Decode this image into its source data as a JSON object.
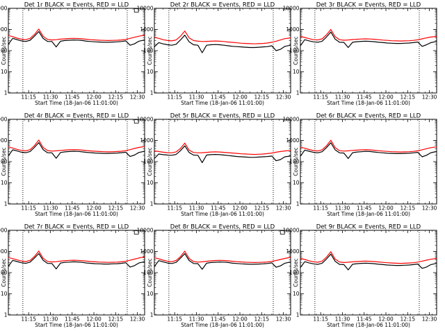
{
  "figure": {
    "xlabel": "Start Time (18-Jan-06 11:01:00)",
    "ylabel": "Counts/sec",
    "x_tick_labels": [
      "11:15",
      "11:30",
      "11:45",
      "12:00",
      "12:15",
      "12:30"
    ],
    "y_tick_labels": [
      "1",
      "10",
      "100",
      "1000",
      "10000"
    ]
  },
  "colors": {
    "events": "#000000",
    "lld": "#ff0000",
    "marker": "#000000"
  },
  "chart_data": [
    {
      "type": "line",
      "title": "Det 1r BLACK = Events, RED = LLD",
      "x_units": "minutes since 11:01:00",
      "xlim": [
        0,
        94
      ],
      "ylim": [
        1,
        10000
      ],
      "y_scale": "log",
      "x": [
        0,
        3,
        6,
        9,
        12,
        15,
        18,
        21,
        24,
        27,
        30,
        33,
        36,
        39,
        42,
        45,
        48,
        51,
        54,
        57,
        60,
        63,
        66,
        69,
        72,
        75,
        78,
        81,
        84,
        87,
        90,
        94
      ],
      "series": [
        {
          "color": "red",
          "values": [
            520,
            460,
            390,
            350,
            330,
            380,
            580,
            1050,
            480,
            340,
            320,
            330,
            350,
            360,
            375,
            380,
            375,
            360,
            345,
            330,
            320,
            310,
            305,
            300,
            305,
            310,
            320,
            340,
            380,
            430,
            480,
            540
          ]
        },
        {
          "color": "black",
          "values": [
            200,
            380,
            330,
            290,
            270,
            310,
            480,
            800,
            380,
            270,
            270,
            150,
            280,
            300,
            310,
            320,
            315,
            300,
            280,
            270,
            260,
            255,
            250,
            250,
            255,
            260,
            270,
            290,
            180,
            210,
            280,
            320
          ]
        }
      ],
      "markers": [
        10,
        82
      ],
      "annotations": [
        {
          "x_fraction": 0.94,
          "shape": "square"
        }
      ]
    },
    {
      "type": "line",
      "title": "Det 2r BLACK = Events, RED = LLD",
      "x_units": "minutes since 11:01:00",
      "xlim": [
        0,
        94
      ],
      "ylim": [
        1,
        10000
      ],
      "y_scale": "log",
      "x": [
        0,
        3,
        6,
        9,
        12,
        15,
        18,
        21,
        24,
        27,
        30,
        33,
        36,
        39,
        42,
        45,
        48,
        51,
        54,
        57,
        60,
        63,
        66,
        69,
        72,
        75,
        78,
        81,
        84,
        87,
        90,
        94
      ],
      "series": [
        {
          "color": "red",
          "values": [
            430,
            380,
            330,
            300,
            290,
            320,
            480,
            850,
            400,
            300,
            280,
            270,
            275,
            280,
            285,
            280,
            270,
            255,
            245,
            235,
            225,
            220,
            215,
            210,
            215,
            220,
            230,
            250,
            280,
            320,
            370,
            400
          ]
        },
        {
          "color": "black",
          "values": [
            150,
            240,
            210,
            190,
            180,
            200,
            320,
            540,
            260,
            190,
            180,
            80,
            180,
            190,
            195,
            190,
            180,
            170,
            160,
            155,
            150,
            145,
            140,
            140,
            145,
            150,
            155,
            170,
            100,
            115,
            160,
            180
          ]
        }
      ],
      "markers": [
        10,
        82
      ],
      "annotations": []
    },
    {
      "type": "line",
      "title": "Det 3r BLACK = Events, RED = LLD",
      "x_units": "minutes since 11:01:00",
      "xlim": [
        0,
        94
      ],
      "ylim": [
        1,
        10000
      ],
      "y_scale": "log",
      "x": [
        0,
        3,
        6,
        9,
        12,
        15,
        18,
        21,
        24,
        27,
        30,
        33,
        36,
        39,
        42,
        45,
        48,
        51,
        54,
        57,
        60,
        63,
        66,
        69,
        72,
        75,
        78,
        81,
        84,
        87,
        90,
        94
      ],
      "series": [
        {
          "color": "red",
          "values": [
            470,
            420,
            370,
            330,
            320,
            360,
            560,
            1000,
            460,
            330,
            310,
            320,
            335,
            345,
            355,
            360,
            355,
            345,
            330,
            315,
            305,
            295,
            290,
            285,
            290,
            295,
            305,
            325,
            360,
            400,
            440,
            470
          ]
        },
        {
          "color": "black",
          "values": [
            170,
            330,
            290,
            260,
            250,
            280,
            440,
            760,
            350,
            250,
            245,
            140,
            250,
            265,
            275,
            280,
            275,
            265,
            250,
            240,
            230,
            225,
            220,
            220,
            225,
            230,
            240,
            255,
            160,
            190,
            240,
            270
          ]
        }
      ],
      "markers": [
        10,
        82
      ],
      "annotations": []
    },
    {
      "type": "line",
      "title": "Det 4r BLACK = Events, RED = LLD",
      "x_units": "minutes since 11:01:00",
      "xlim": [
        0,
        94
      ],
      "ylim": [
        1,
        10000
      ],
      "y_scale": "log",
      "x": [
        0,
        3,
        6,
        9,
        12,
        15,
        18,
        21,
        24,
        27,
        30,
        33,
        36,
        39,
        42,
        45,
        48,
        51,
        54,
        57,
        60,
        63,
        66,
        69,
        72,
        75,
        78,
        81,
        84,
        87,
        90,
        94
      ],
      "series": [
        {
          "color": "red",
          "values": [
            500,
            440,
            380,
            340,
            325,
            370,
            570,
            1050,
            470,
            335,
            315,
            325,
            340,
            350,
            365,
            370,
            365,
            350,
            335,
            320,
            310,
            300,
            295,
            290,
            295,
            300,
            310,
            330,
            370,
            420,
            470,
            520
          ]
        },
        {
          "color": "black",
          "values": [
            190,
            360,
            320,
            280,
            265,
            300,
            470,
            790,
            370,
            265,
            260,
            145,
            270,
            290,
            300,
            310,
            305,
            290,
            275,
            265,
            255,
            250,
            245,
            245,
            250,
            255,
            265,
            280,
            175,
            205,
            270,
            310
          ]
        }
      ],
      "markers": [
        10,
        82
      ],
      "annotations": [
        {
          "x_fraction": 0.94,
          "shape": "square"
        }
      ]
    },
    {
      "type": "line",
      "title": "Det 5r BLACK = Events, RED = LLD",
      "x_units": "minutes since 11:01:00",
      "xlim": [
        0,
        94
      ],
      "ylim": [
        1,
        10000
      ],
      "y_scale": "log",
      "x": [
        0,
        3,
        6,
        9,
        12,
        15,
        18,
        21,
        24,
        27,
        30,
        33,
        36,
        39,
        42,
        45,
        48,
        51,
        54,
        57,
        60,
        63,
        66,
        69,
        72,
        75,
        78,
        81,
        84,
        87,
        90,
        94
      ],
      "series": [
        {
          "color": "red",
          "values": [
            320,
            300,
            280,
            265,
            260,
            290,
            420,
            750,
            350,
            270,
            260,
            265,
            275,
            285,
            290,
            285,
            275,
            265,
            255,
            245,
            235,
            230,
            225,
            220,
            225,
            230,
            240,
            255,
            280,
            300,
            320,
            340
          ]
        },
        {
          "color": "black",
          "values": [
            140,
            230,
            215,
            205,
            200,
            220,
            330,
            560,
            270,
            205,
            200,
            90,
            205,
            215,
            220,
            215,
            205,
            195,
            185,
            175,
            170,
            165,
            160,
            160,
            165,
            170,
            175,
            185,
            110,
            125,
            170,
            185
          ]
        }
      ],
      "markers": [
        10,
        82
      ],
      "annotations": []
    },
    {
      "type": "line",
      "title": "Det 6r BLACK = Events, RED = LLD",
      "x_units": "minutes since 11:01:00",
      "xlim": [
        0,
        94
      ],
      "ylim": [
        1,
        10000
      ],
      "y_scale": "log",
      "x": [
        0,
        3,
        6,
        9,
        12,
        15,
        18,
        21,
        24,
        27,
        30,
        33,
        36,
        39,
        42,
        45,
        48,
        51,
        54,
        57,
        60,
        63,
        66,
        69,
        72,
        75,
        78,
        81,
        84,
        87,
        90,
        94
      ],
      "series": [
        {
          "color": "red",
          "values": [
            490,
            430,
            375,
            335,
            320,
            365,
            560,
            1030,
            460,
            330,
            315,
            325,
            340,
            350,
            360,
            365,
            360,
            345,
            330,
            315,
            305,
            295,
            290,
            285,
            290,
            295,
            305,
            325,
            365,
            410,
            460,
            500
          ]
        },
        {
          "color": "black",
          "values": [
            180,
            350,
            310,
            275,
            260,
            295,
            460,
            780,
            360,
            260,
            255,
            140,
            265,
            285,
            295,
            305,
            300,
            285,
            270,
            260,
            250,
            245,
            240,
            240,
            245,
            250,
            260,
            275,
            170,
            200,
            265,
            300
          ]
        }
      ],
      "markers": [
        10,
        82
      ],
      "annotations": []
    },
    {
      "type": "line",
      "title": "Det 7r BLACK = Events, RED = LLD",
      "x_units": "minutes since 11:01:00",
      "xlim": [
        0,
        94
      ],
      "ylim": [
        1,
        10000
      ],
      "y_scale": "log",
      "x": [
        0,
        3,
        6,
        9,
        12,
        15,
        18,
        21,
        24,
        27,
        30,
        33,
        36,
        39,
        42,
        45,
        48,
        51,
        54,
        57,
        60,
        63,
        66,
        69,
        72,
        75,
        78,
        81,
        84,
        87,
        90,
        94
      ],
      "series": [
        {
          "color": "red",
          "values": [
            520,
            460,
            400,
            355,
            335,
            380,
            580,
            1050,
            480,
            340,
            320,
            330,
            350,
            365,
            380,
            385,
            380,
            365,
            350,
            335,
            325,
            315,
            310,
            305,
            310,
            315,
            325,
            345,
            385,
            435,
            490,
            560
          ]
        },
        {
          "color": "black",
          "values": [
            200,
            380,
            335,
            295,
            275,
            315,
            490,
            800,
            385,
            275,
            270,
            150,
            285,
            305,
            315,
            325,
            320,
            305,
            285,
            275,
            265,
            260,
            255,
            255,
            260,
            265,
            275,
            295,
            185,
            215,
            285,
            330
          ]
        }
      ],
      "markers": [
        10,
        82
      ],
      "annotations": [
        {
          "x_fraction": 0.94,
          "shape": "square"
        }
      ]
    },
    {
      "type": "line",
      "title": "Det 8r BLACK = Events, RED = LLD",
      "x_units": "minutes since 11:01:00",
      "xlim": [
        0,
        94
      ],
      "ylim": [
        1,
        10000
      ],
      "y_scale": "log",
      "x": [
        0,
        3,
        6,
        9,
        12,
        15,
        18,
        21,
        24,
        27,
        30,
        33,
        36,
        39,
        42,
        45,
        48,
        51,
        54,
        57,
        60,
        63,
        66,
        69,
        72,
        75,
        78,
        81,
        84,
        87,
        90,
        94
      ],
      "series": [
        {
          "color": "red",
          "values": [
            510,
            450,
            390,
            345,
            330,
            375,
            570,
            1040,
            470,
            335,
            315,
            325,
            345,
            360,
            375,
            380,
            375,
            360,
            345,
            330,
            320,
            310,
            305,
            300,
            305,
            310,
            320,
            340,
            375,
            420,
            470,
            530
          ]
        },
        {
          "color": "black",
          "values": [
            195,
            370,
            325,
            285,
            270,
            305,
            480,
            790,
            375,
            270,
            265,
            145,
            280,
            300,
            310,
            320,
            315,
            300,
            280,
            270,
            260,
            255,
            250,
            250,
            255,
            260,
            270,
            290,
            180,
            210,
            280,
            320
          ]
        }
      ],
      "markers": [
        10,
        82
      ],
      "annotations": [
        {
          "x_fraction": 0.94,
          "shape": "square"
        }
      ]
    },
    {
      "type": "line",
      "title": "Det 9r BLACK = Events, RED = LLD",
      "x_units": "minutes since 11:01:00",
      "xlim": [
        0,
        94
      ],
      "ylim": [
        1,
        10000
      ],
      "y_scale": "log",
      "x": [
        0,
        3,
        6,
        9,
        12,
        15,
        18,
        21,
        24,
        27,
        30,
        33,
        36,
        39,
        42,
        45,
        48,
        51,
        54,
        57,
        60,
        63,
        66,
        69,
        72,
        75,
        78,
        81,
        84,
        87,
        90,
        94
      ],
      "series": [
        {
          "color": "red",
          "values": [
            470,
            420,
            365,
            325,
            310,
            350,
            540,
            980,
            440,
            320,
            300,
            310,
            325,
            335,
            345,
            350,
            345,
            335,
            320,
            305,
            295,
            285,
            280,
            275,
            280,
            285,
            295,
            315,
            350,
            390,
            430,
            470
          ]
        },
        {
          "color": "black",
          "values": [
            175,
            330,
            290,
            260,
            245,
            280,
            440,
            750,
            345,
            245,
            240,
            135,
            250,
            265,
            275,
            280,
            275,
            265,
            250,
            240,
            230,
            225,
            220,
            220,
            225,
            230,
            240,
            255,
            160,
            185,
            240,
            275
          ]
        }
      ],
      "markers": [
        10,
        82
      ],
      "annotations": []
    }
  ]
}
